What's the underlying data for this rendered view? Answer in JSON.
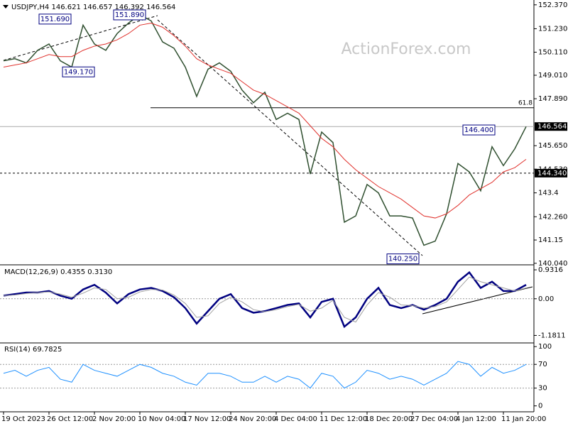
{
  "chart_data": [
    {
      "type": "line",
      "header": "USDJPY,H4  146.621 146.657 146.392 146.564",
      "watermark": "ActionForex.com",
      "ylim": [
        140.0,
        152.6
      ],
      "yticks": [
        {
          "value": 152.37,
          "label": "152.370"
        },
        {
          "value": 151.23,
          "label": "151.230"
        },
        {
          "value": 150.11,
          "label": "150.110"
        },
        {
          "value": 149.01,
          "label": "149.010"
        },
        {
          "value": 147.89,
          "label": "147.890"
        },
        {
          "value": 145.65,
          "label": "145.650"
        },
        {
          "value": 144.53,
          "label": "144.530"
        },
        143.4,
        {
          "value": 142.26,
          "label": "142.260"
        },
        141.15,
        {
          "value": 140.04,
          "label": "140.040"
        }
      ],
      "series": [
        {
          "name": "USDJPY",
          "color": "#2f4f2f",
          "values": [
            149.7,
            149.8,
            149.6,
            150.2,
            150.5,
            149.7,
            149.4,
            151.4,
            150.5,
            150.2,
            151.0,
            151.5,
            151.9,
            151.6,
            150.6,
            150.3,
            149.4,
            148.0,
            149.3,
            149.6,
            149.2,
            148.3,
            147.7,
            148.2,
            146.9,
            147.2,
            146.9,
            144.3,
            146.3,
            145.8,
            142.0,
            142.3,
            143.8,
            143.4,
            142.3,
            142.3,
            142.2,
            140.9,
            141.1,
            142.4,
            144.8,
            144.4,
            143.5,
            145.6,
            144.7,
            145.5,
            146.56
          ]
        },
        {
          "name": "MA",
          "color": "#e0312c",
          "values": [
            149.4,
            149.5,
            149.6,
            149.8,
            150.0,
            149.9,
            149.9,
            150.2,
            150.4,
            150.5,
            150.7,
            151.0,
            151.4,
            151.5,
            151.3,
            150.9,
            150.4,
            149.8,
            149.5,
            149.3,
            149.1,
            148.7,
            148.3,
            148.1,
            147.8,
            147.5,
            147.2,
            146.6,
            146.0,
            145.6,
            145.0,
            144.5,
            144.1,
            143.7,
            143.4,
            143.1,
            142.7,
            142.3,
            142.2,
            142.4,
            142.8,
            143.3,
            143.6,
            143.9,
            144.4,
            144.6,
            145.0
          ]
        }
      ],
      "annotations": [
        {
          "value": 151.69,
          "label": "151.690"
        },
        {
          "value": 151.89,
          "label": "151.890"
        },
        {
          "value": 149.17,
          "label": "149.170"
        },
        {
          "value": 140.25,
          "label": "140.250"
        },
        {
          "value": 146.4,
          "label": "146.400"
        }
      ],
      "fib": {
        "value": 147.46,
        "label": "61.8"
      },
      "level": {
        "value": 144.34,
        "label": "144.340"
      },
      "last": {
        "value": 146.564,
        "label": "146.564"
      }
    },
    {
      "type": "line",
      "title": "MACD(12,26,9) 0.4355 0.3130",
      "ylim": [
        -1.4,
        1.07
      ],
      "yticks": [
        0.9316,
        {
          "value": 0,
          "label": "0.00"
        },
        -1.1811
      ],
      "series": [
        {
          "name": "MACD",
          "color": "#000080",
          "values": [
            0.1,
            0.15,
            0.2,
            0.2,
            0.25,
            0.1,
            0.0,
            0.3,
            0.45,
            0.2,
            -0.15,
            0.15,
            0.3,
            0.35,
            0.25,
            0.05,
            -0.3,
            -0.8,
            -0.4,
            0.0,
            0.15,
            -0.3,
            -0.45,
            -0.4,
            -0.3,
            -0.2,
            -0.15,
            -0.6,
            -0.1,
            0.0,
            -0.9,
            -0.6,
            0.0,
            0.35,
            -0.2,
            -0.3,
            -0.2,
            -0.35,
            -0.2,
            0.0,
            0.55,
            0.85,
            0.35,
            0.55,
            0.25,
            0.25,
            0.45
          ]
        },
        {
          "name": "Signal",
          "color": "#a0a0a0",
          "values": [
            0.1,
            0.12,
            0.17,
            0.2,
            0.22,
            0.15,
            0.05,
            0.18,
            0.35,
            0.3,
            0.0,
            0.05,
            0.22,
            0.3,
            0.28,
            0.12,
            -0.15,
            -0.6,
            -0.55,
            -0.15,
            0.05,
            -0.1,
            -0.35,
            -0.42,
            -0.35,
            -0.25,
            -0.18,
            -0.4,
            -0.3,
            -0.05,
            -0.6,
            -0.75,
            -0.2,
            0.2,
            0.05,
            -0.2,
            -0.22,
            -0.3,
            -0.25,
            -0.1,
            0.3,
            0.7,
            0.55,
            0.45,
            0.35,
            0.25,
            0.35
          ]
        }
      ]
    },
    {
      "type": "line",
      "title": "RSI(14) 69.7825",
      "ylim": [
        -10,
        105
      ],
      "yticks": [
        100,
        70,
        30,
        0
      ],
      "levels": [
        70,
        30
      ],
      "categories": [
        "19 Oct 2023",
        null,
        null,
        null,
        "26 Oct 12:00",
        null,
        null,
        null,
        "2 Nov 20:00",
        null,
        null,
        null,
        "10 Nov 04:00",
        null,
        null,
        null,
        "17 Nov 12:00",
        null,
        null,
        null,
        "24 Nov 20:00",
        null,
        null,
        null,
        "4 Dec 04:00",
        null,
        null,
        null,
        "11 Dec 12:00",
        null,
        null,
        null,
        "18 Dec 20:00",
        null,
        null,
        null,
        "27 Dec 04:00",
        null,
        null,
        null,
        "4 Jan 12:00",
        null,
        null,
        null,
        "11 Jan 20:00",
        null,
        null
      ],
      "series": [
        {
          "name": "RSI",
          "color": "#1e90ff",
          "values": [
            55,
            60,
            50,
            60,
            65,
            45,
            40,
            70,
            60,
            55,
            50,
            60,
            70,
            65,
            55,
            50,
            40,
            35,
            55,
            55,
            50,
            40,
            40,
            50,
            40,
            50,
            45,
            30,
            55,
            50,
            30,
            40,
            60,
            55,
            45,
            50,
            45,
            35,
            45,
            55,
            75,
            70,
            50,
            65,
            55,
            60,
            70
          ]
        }
      ]
    }
  ]
}
